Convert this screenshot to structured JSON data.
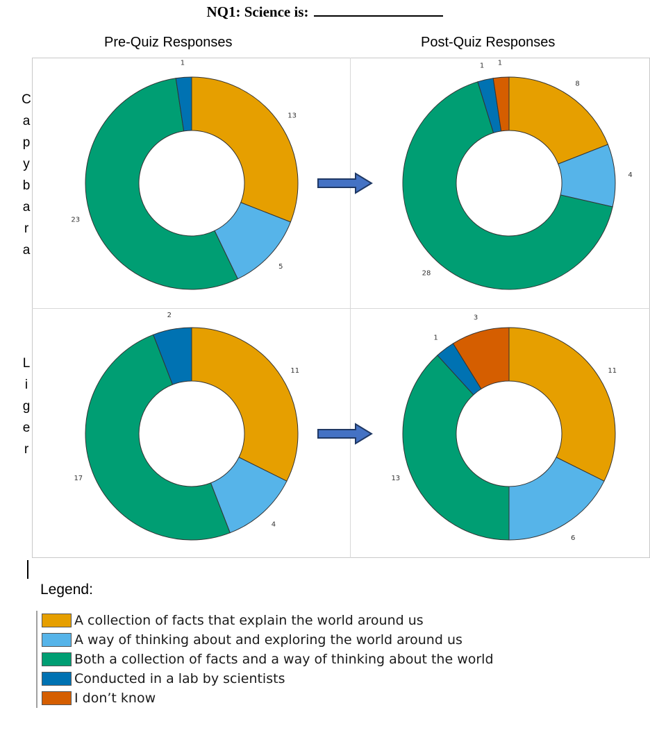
{
  "title": "NQ1: Science is:",
  "columns": [
    "Pre-Quiz Responses",
    "Post-Quiz Responses"
  ],
  "rows": [
    "Capybara",
    "Liger"
  ],
  "legend": {
    "title": "Legend:",
    "items": [
      {
        "label": "A collection of facts that explain the world around us",
        "color": "#E69F00"
      },
      {
        "label": "A way of thinking about and exploring the world around us",
        "color": "#56B4E9"
      },
      {
        "label": "Both a collection of facts and a way of thinking about the world",
        "color": "#009E73"
      },
      {
        "label": "Conducted in a lab by scientists",
        "color": "#0072B2"
      },
      {
        "label": "I don’t know",
        "color": "#D55E00"
      }
    ]
  },
  "chart_data": [
    {
      "type": "pie",
      "row": "Capybara",
      "column": "Pre-Quiz Responses",
      "values": [
        13,
        5,
        23,
        1,
        0
      ]
    },
    {
      "type": "pie",
      "row": "Capybara",
      "column": "Post-Quiz Responses",
      "values": [
        8,
        4,
        28,
        1,
        1
      ]
    },
    {
      "type": "pie",
      "row": "Liger",
      "column": "Pre-Quiz Responses",
      "values": [
        11,
        4,
        17,
        2,
        0
      ]
    },
    {
      "type": "pie",
      "row": "Liger",
      "column": "Post-Quiz Responses",
      "values": [
        11,
        6,
        13,
        1,
        3
      ]
    }
  ]
}
